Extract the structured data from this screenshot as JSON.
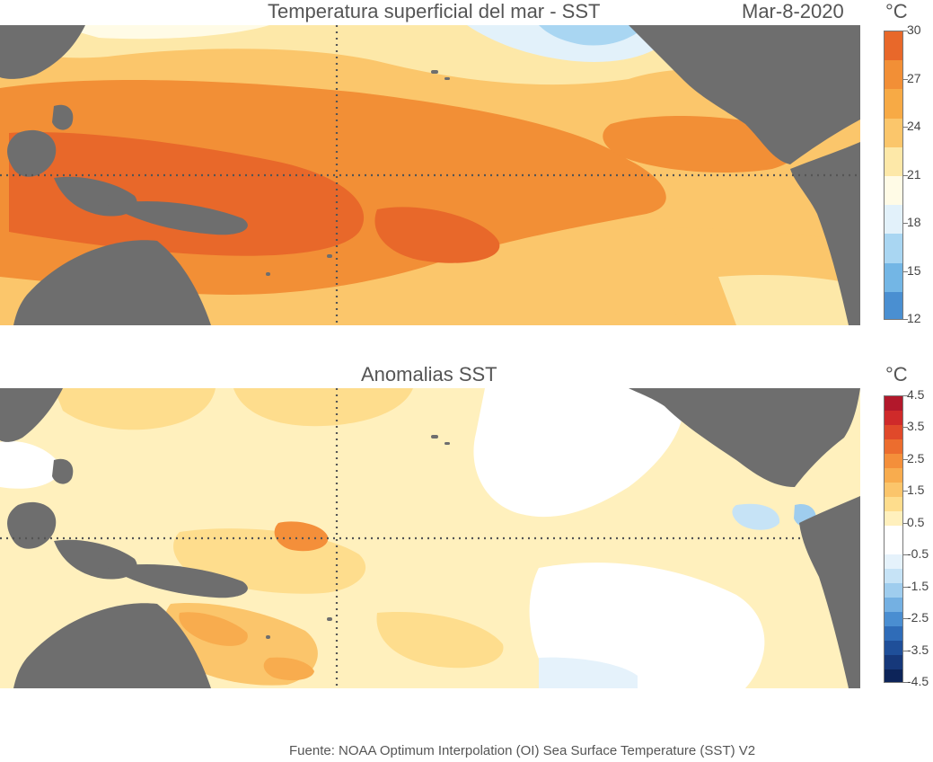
{
  "maps": [
    {
      "title": "Temperatura superficial del mar - SST",
      "date": "Mar-8-2020",
      "unit": "°C",
      "colorbar": {
        "colors": [
          "#e8682a",
          "#f28f36",
          "#f7aa45",
          "#fbc66b",
          "#fde8a8",
          "#fffbe6",
          "#e2f1fa",
          "#a9d6f2",
          "#73b6e5",
          "#4a8fd1"
        ],
        "labels": [
          "30",
          "27",
          "24",
          "21",
          "18",
          "15",
          "12"
        ]
      }
    },
    {
      "title": "Anomalias SST",
      "unit": "°C",
      "colorbar": {
        "colors": [
          "#b2182b",
          "#cf2a2a",
          "#e0492a",
          "#ec6d2e",
          "#f48f3a",
          "#f8ac4e",
          "#fbc56b",
          "#fedd8d",
          "#fff0bd",
          "#ffffff",
          "#ffffff",
          "#e5f2fb",
          "#c6e3f6",
          "#9fcdee",
          "#74b0e2",
          "#4a8ed1",
          "#2f6cb8",
          "#1f4f99",
          "#16387a",
          "#0d2459"
        ],
        "labels": [
          "4.5",
          "3.5",
          "2.5",
          "1.5",
          "0.5",
          "-0.5",
          "-1.5",
          "-2.5",
          "-3.5",
          "-4.5"
        ]
      }
    }
  ],
  "source": "Fuente: NOAA Optimum Interpolation (OI) Sea Surface Temperature (SST) V2"
}
